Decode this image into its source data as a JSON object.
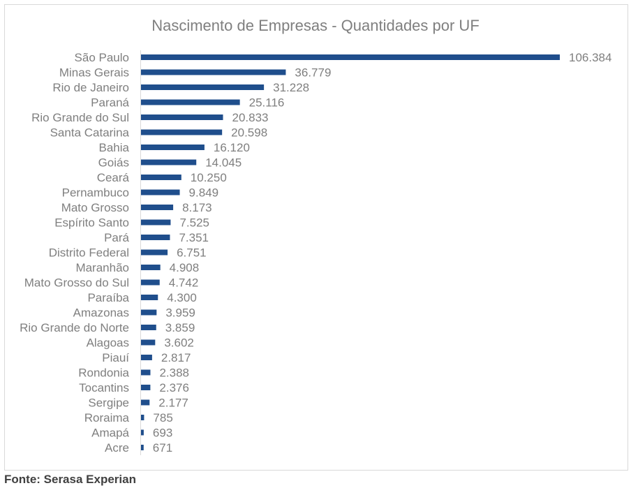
{
  "chart_data": {
    "type": "bar",
    "orientation": "horizontal",
    "title": "Nascimento de Empresas - Quantidades por UF",
    "categories": [
      "São Paulo",
      "Minas Gerais",
      "Rio de Janeiro",
      "Paraná",
      "Rio Grande do Sul",
      "Santa Catarina",
      "Bahia",
      "Goiás",
      "Ceará",
      "Pernambuco",
      "Mato Grosso",
      "Espírito Santo",
      "Pará",
      "Distrito Federal",
      "Maranhão",
      "Mato Grosso do Sul",
      "Paraíba",
      "Amazonas",
      "Rio Grande do Norte",
      "Alagoas",
      "Piauí",
      "Rondonia",
      "Tocantins",
      "Sergipe",
      "Roraima",
      "Amapá",
      "Acre"
    ],
    "values": [
      106384,
      36779,
      31228,
      25116,
      20833,
      20598,
      16120,
      14045,
      10250,
      9849,
      8173,
      7525,
      7351,
      6751,
      4908,
      4742,
      4300,
      3959,
      3859,
      3602,
      2817,
      2388,
      2376,
      2177,
      785,
      693,
      671
    ],
    "value_labels": [
      "106.384",
      "36.779",
      "31.228",
      "25.116",
      "20.833",
      "20.598",
      "16.120",
      "14.045",
      "10.250",
      "9.849",
      "8.173",
      "7.525",
      "7.351",
      "6.751",
      "4.908",
      "4.742",
      "4.300",
      "3.959",
      "3.859",
      "3.602",
      "2.817",
      "2.388",
      "2.376",
      "2.177",
      "785",
      "693",
      "671"
    ],
    "xlim": [
      0,
      106384
    ],
    "grid": false,
    "bar_color": "#1f4e8c"
  },
  "source": "Fonte: Serasa Experian"
}
